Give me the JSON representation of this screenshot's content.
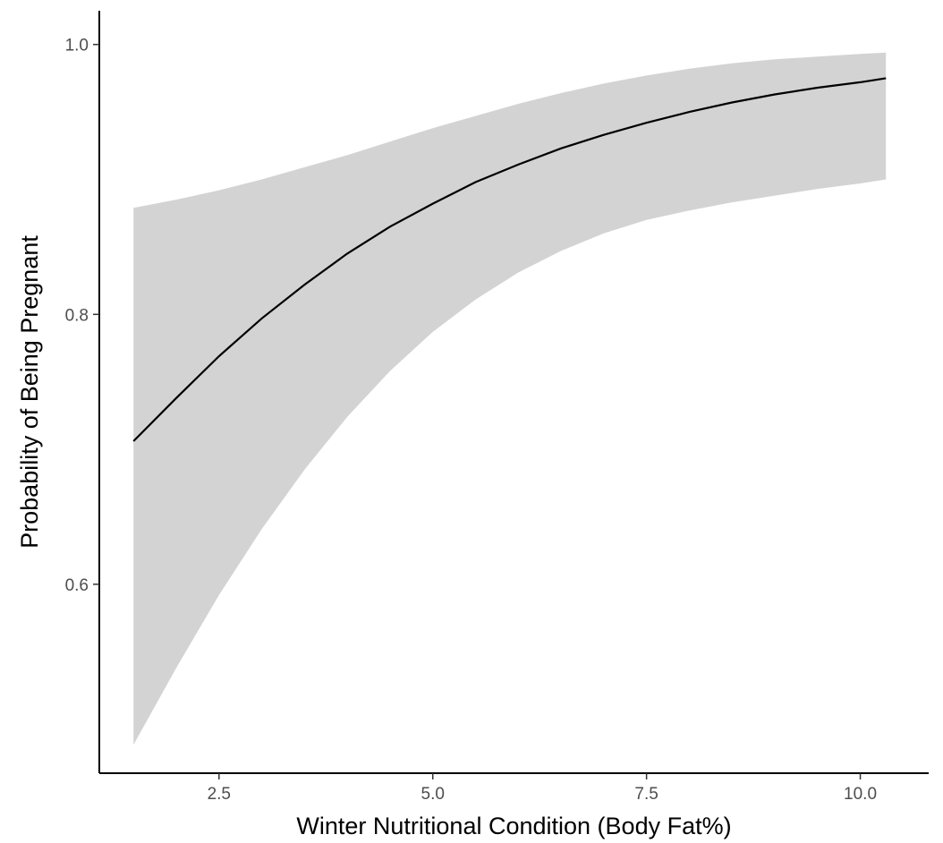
{
  "chart_data": {
    "type": "line",
    "title": "",
    "xlabel": "Winter Nutritional Condition (Body Fat%)",
    "ylabel": "Probability of Being Pregnant",
    "xlim": [
      1.1,
      10.8
    ],
    "ylim": [
      0.46,
      1.025
    ],
    "x_ticks": [
      2.5,
      5.0,
      7.5,
      10.0
    ],
    "x_tick_labels": [
      "2.5",
      "5.0",
      "7.5",
      "10.0"
    ],
    "y_ticks": [
      0.6,
      0.8,
      1.0
    ],
    "y_tick_labels": [
      "0.6",
      "0.8",
      "1.0"
    ],
    "grid": false,
    "legend": "none",
    "colors": {
      "line": "#000000",
      "band": "#d3d3d3",
      "axis": "#000000",
      "tick_text": "#4d4d4d"
    },
    "series": [
      {
        "x": [
          1.5,
          2.0,
          2.5,
          3.0,
          3.5,
          4.0,
          4.5,
          5.0,
          5.5,
          6.0,
          6.5,
          7.0,
          7.5,
          8.0,
          8.5,
          9.0,
          9.5,
          10.0,
          10.3
        ],
        "y": [
          0.706,
          0.738,
          0.769,
          0.797,
          0.822,
          0.845,
          0.865,
          0.882,
          0.898,
          0.911,
          0.923,
          0.933,
          0.942,
          0.95,
          0.957,
          0.963,
          0.968,
          0.972,
          0.975
        ],
        "lower": [
          0.481,
          0.538,
          0.592,
          0.641,
          0.685,
          0.724,
          0.758,
          0.787,
          0.811,
          0.831,
          0.847,
          0.86,
          0.87,
          0.877,
          0.883,
          0.888,
          0.893,
          0.897,
          0.9
        ],
        "upper": [
          0.879,
          0.885,
          0.892,
          0.9,
          0.909,
          0.918,
          0.928,
          0.938,
          0.947,
          0.956,
          0.964,
          0.971,
          0.977,
          0.982,
          0.986,
          0.989,
          0.991,
          0.993,
          0.994
        ]
      }
    ]
  }
}
